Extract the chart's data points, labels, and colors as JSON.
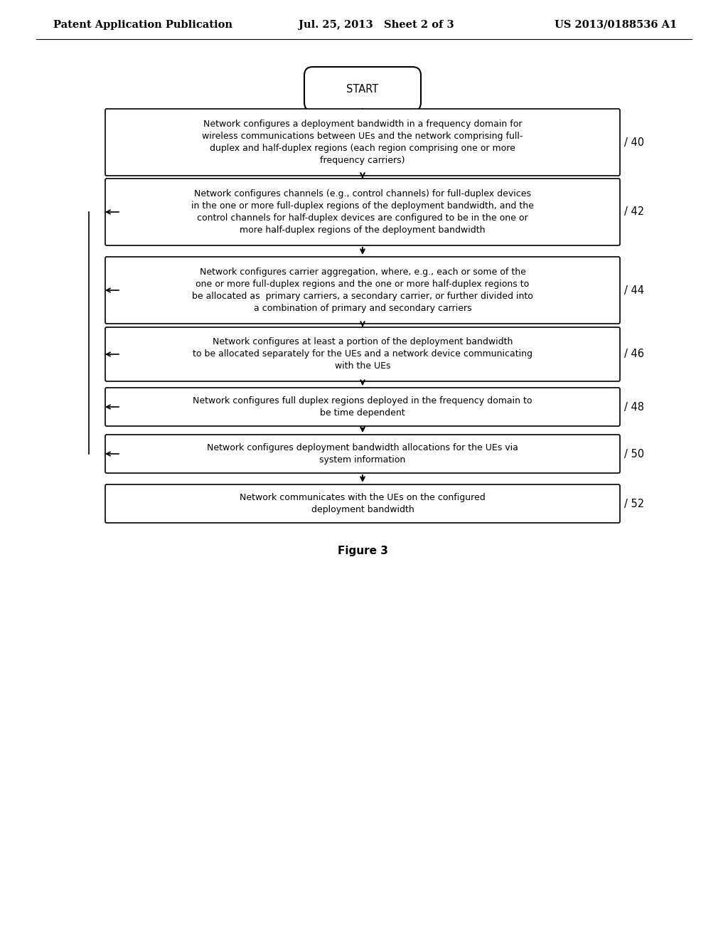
{
  "header_left": "Patent Application Publication",
  "header_mid": "Jul. 25, 2013   Sheet 2 of 3",
  "header_right": "US 2013/0188536 A1",
  "figure_label": "Figure 3",
  "start_label": "START",
  "boxes": [
    {
      "id": 40,
      "label": "40",
      "text": "Network configures a deployment bandwidth in a frequency domain for\nwireless communications between UEs and the network comprising full-\nduplex and half-duplex regions (each region comprising one or more\nfrequency carriers)"
    },
    {
      "id": 42,
      "label": "42",
      "text": "Network configures channels (e.g., control channels) for full-duplex devices\nin the one or more full-duplex regions of the deployment bandwidth, and the\ncontrol channels for half-duplex devices are configured to be in the one or\nmore half-duplex regions of the deployment bandwidth"
    },
    {
      "id": 44,
      "label": "44",
      "text": "Network configures carrier aggregation, where, e.g., each or some of the\none or more full-duplex regions and the one or more half-duplex regions to\nbe allocated as  primary carriers, a secondary carrier, or further divided into\na combination of primary and secondary carriers"
    },
    {
      "id": 46,
      "label": "46",
      "text": "Network configures at least a portion of the deployment bandwidth\nto be allocated separately for the UEs and a network device communicating\nwith the UEs"
    },
    {
      "id": 48,
      "label": "48",
      "text": "Network configures full duplex regions deployed in the frequency domain to\nbe time dependent"
    },
    {
      "id": 50,
      "label": "50",
      "text": "Network configures deployment bandwidth allocations for the UEs via\nsystem information"
    },
    {
      "id": 52,
      "label": "52",
      "text": "Network communicates with the UEs on the configured\ndeployment bandwidth"
    }
  ],
  "bg_color": "#ffffff",
  "box_face_color": "#ffffff",
  "box_edge_color": "#000000",
  "text_color": "#000000",
  "arrow_color": "#000000",
  "font_size": 9.0,
  "header_font_size": 10.5,
  "label_font_size": 10.5,
  "figure_font_size": 11.0
}
